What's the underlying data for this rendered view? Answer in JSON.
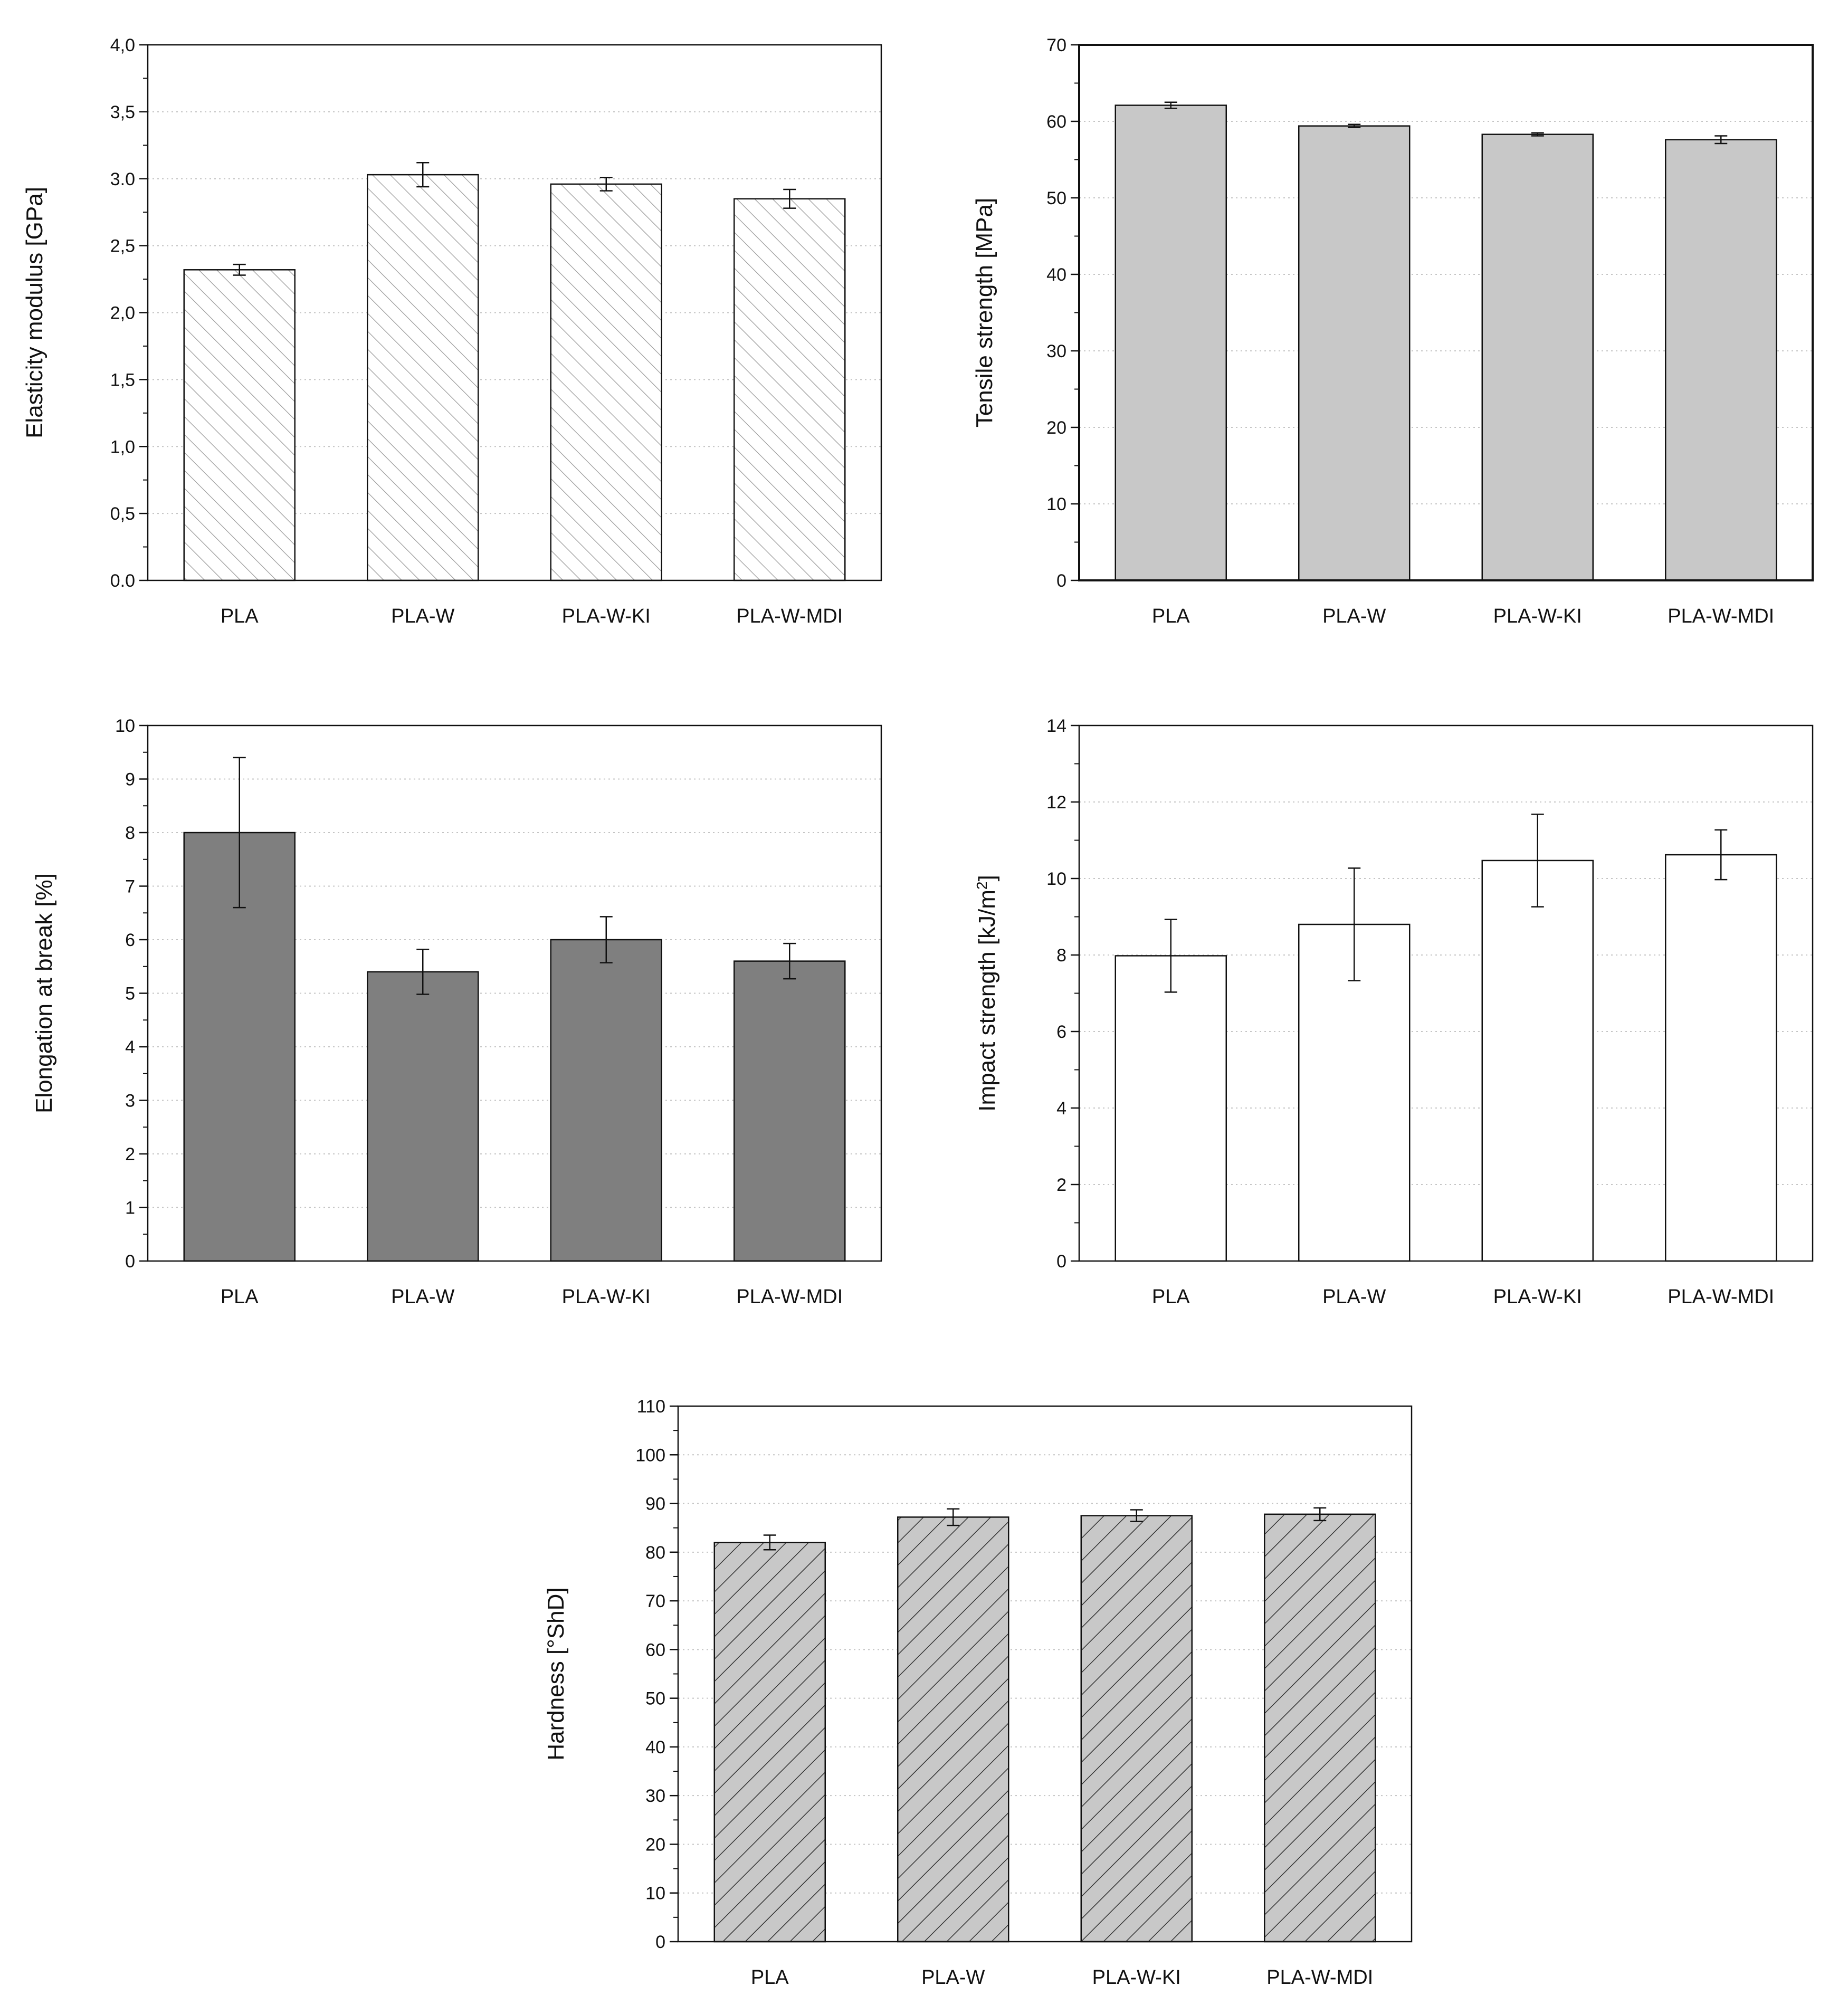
{
  "chart_data": [
    {
      "type": "bar",
      "id": "elasticity",
      "ylabel": "Elasticity modulus [GPa]",
      "categories": [
        "PLA",
        "PLA-W",
        "PLA-W-KI",
        "PLA-W-MDI"
      ],
      "values": [
        2.32,
        3.03,
        2.96,
        2.85
      ],
      "errors": [
        0.04,
        0.09,
        0.05,
        0.07
      ],
      "ylim": [
        0,
        4.0
      ],
      "yticks": [
        "0.0",
        "0,5",
        "1,0",
        "1,5",
        "2,0",
        "2,5",
        "3.0",
        "3,5",
        "4,0"
      ],
      "ytick_values": [
        0,
        0.5,
        1.0,
        1.5,
        2.0,
        2.5,
        3.0,
        3.5,
        4.0
      ],
      "grid": true,
      "fill": "#ffffff",
      "hatch": "backslash-light"
    },
    {
      "type": "bar",
      "id": "tensile",
      "ylabel": "Tensile strength [MPa]",
      "categories": [
        "PLA",
        "PLA-W",
        "PLA-W-KI",
        "PLA-W-MDI"
      ],
      "values": [
        62.1,
        59.4,
        58.3,
        57.6
      ],
      "errors": [
        0.4,
        0.2,
        0.2,
        0.5
      ],
      "ylim": [
        0,
        70
      ],
      "yticks": [
        "0",
        "10",
        "20",
        "30",
        "40",
        "50",
        "60",
        "70"
      ],
      "ytick_values": [
        0,
        10,
        20,
        30,
        40,
        50,
        60,
        70
      ],
      "grid": true,
      "fill": "#c8c8c8",
      "hatch": "none"
    },
    {
      "type": "bar",
      "id": "elongation",
      "ylabel": "Elongation at break [%]",
      "categories": [
        "PLA",
        "PLA-W",
        "PLA-W-KI",
        "PLA-W-MDI"
      ],
      "values": [
        8.0,
        5.4,
        6.0,
        5.6
      ],
      "errors": [
        1.4,
        0.42,
        0.43,
        0.33
      ],
      "ylim": [
        0,
        10
      ],
      "yticks": [
        "0",
        "1",
        "2",
        "3",
        "4",
        "5",
        "6",
        "7",
        "8",
        "9",
        "10"
      ],
      "ytick_values": [
        0,
        1,
        2,
        3,
        4,
        5,
        6,
        7,
        8,
        9,
        10
      ],
      "grid": true,
      "fill": "#7f7f7f",
      "hatch": "none"
    },
    {
      "type": "bar",
      "id": "impact",
      "ylabel": "Impact strength [kJ/m",
      "ylabel_sup": "2",
      "ylabel_end": "]",
      "categories": [
        "PLA",
        "PLA-W",
        "PLA-W-KI",
        "PLA-W-MDI"
      ],
      "values": [
        7.98,
        8.8,
        10.47,
        10.62
      ],
      "errors": [
        0.95,
        1.47,
        1.21,
        0.65
      ],
      "ylim": [
        0,
        14
      ],
      "yticks": [
        "0",
        "2",
        "4",
        "6",
        "8",
        "10",
        "12",
        "14"
      ],
      "ytick_values": [
        0,
        2,
        4,
        6,
        8,
        10,
        12,
        14
      ],
      "grid": true,
      "fill": "#ffffff",
      "hatch": "none"
    },
    {
      "type": "bar",
      "id": "hardness",
      "ylabel": "Hardness [°ShD]",
      "categories": [
        "PLA",
        "PLA-W",
        "PLA-W-KI",
        "PLA-W-MDI"
      ],
      "values": [
        82.0,
        87.2,
        87.5,
        87.8
      ],
      "errors": [
        1.5,
        1.7,
        1.2,
        1.3
      ],
      "ylim": [
        0,
        110
      ],
      "yticks": [
        "0",
        "10",
        "20",
        "30",
        "40",
        "50",
        "60",
        "70",
        "80",
        "90",
        "100",
        "110"
      ],
      "ytick_values": [
        0,
        10,
        20,
        30,
        40,
        50,
        60,
        70,
        80,
        90,
        100,
        110
      ],
      "grid": true,
      "fill": "#c8c8c8",
      "hatch": "slash-dark"
    }
  ]
}
